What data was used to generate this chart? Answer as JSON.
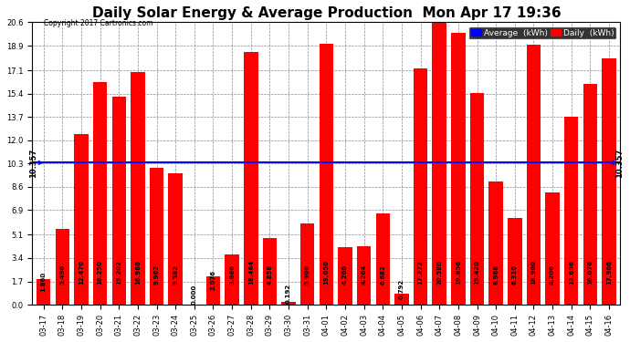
{
  "title": "Daily Solar Energy & Average Production  Mon Apr 17 19:36",
  "copyright": "Copyright 2017 Cartronics.com",
  "categories": [
    "03-17",
    "03-18",
    "03-19",
    "03-20",
    "03-21",
    "03-22",
    "03-23",
    "03-24",
    "03-25",
    "03-26",
    "03-27",
    "03-28",
    "03-29",
    "03-30",
    "03-31",
    "04-01",
    "04-02",
    "04-03",
    "04-04",
    "04-05",
    "04-06",
    "04-07",
    "04-08",
    "04-09",
    "04-10",
    "04-11",
    "04-12",
    "04-13",
    "04-14",
    "04-15",
    "04-16"
  ],
  "values": [
    1.86,
    5.496,
    12.47,
    16.25,
    15.202,
    16.986,
    9.962,
    9.582,
    0.0,
    2.076,
    3.686,
    18.464,
    4.858,
    0.192,
    5.906,
    19.05,
    4.206,
    4.264,
    6.682,
    0.792,
    17.272,
    20.58,
    19.856,
    15.42,
    8.968,
    6.316,
    18.96,
    8.206,
    13.696,
    16.076,
    17.966
  ],
  "average": 10.357,
  "bar_color": "#ff0000",
  "avg_line_color": "#0000ff",
  "background_color": "#ffffff",
  "plot_bg_color": "#ffffff",
  "grid_color": "#888888",
  "title_fontsize": 11,
  "bar_label_fontsize": 5.0,
  "tick_label_fontsize": 6.0,
  "ylim": [
    0.0,
    20.6
  ],
  "yticks": [
    0.0,
    1.7,
    3.4,
    5.1,
    6.9,
    8.6,
    10.3,
    12.0,
    13.7,
    15.4,
    17.1,
    18.9,
    20.6
  ],
  "legend_avg_label": "Average  (kWh)",
  "legend_daily_label": "Daily  (kWh)"
}
